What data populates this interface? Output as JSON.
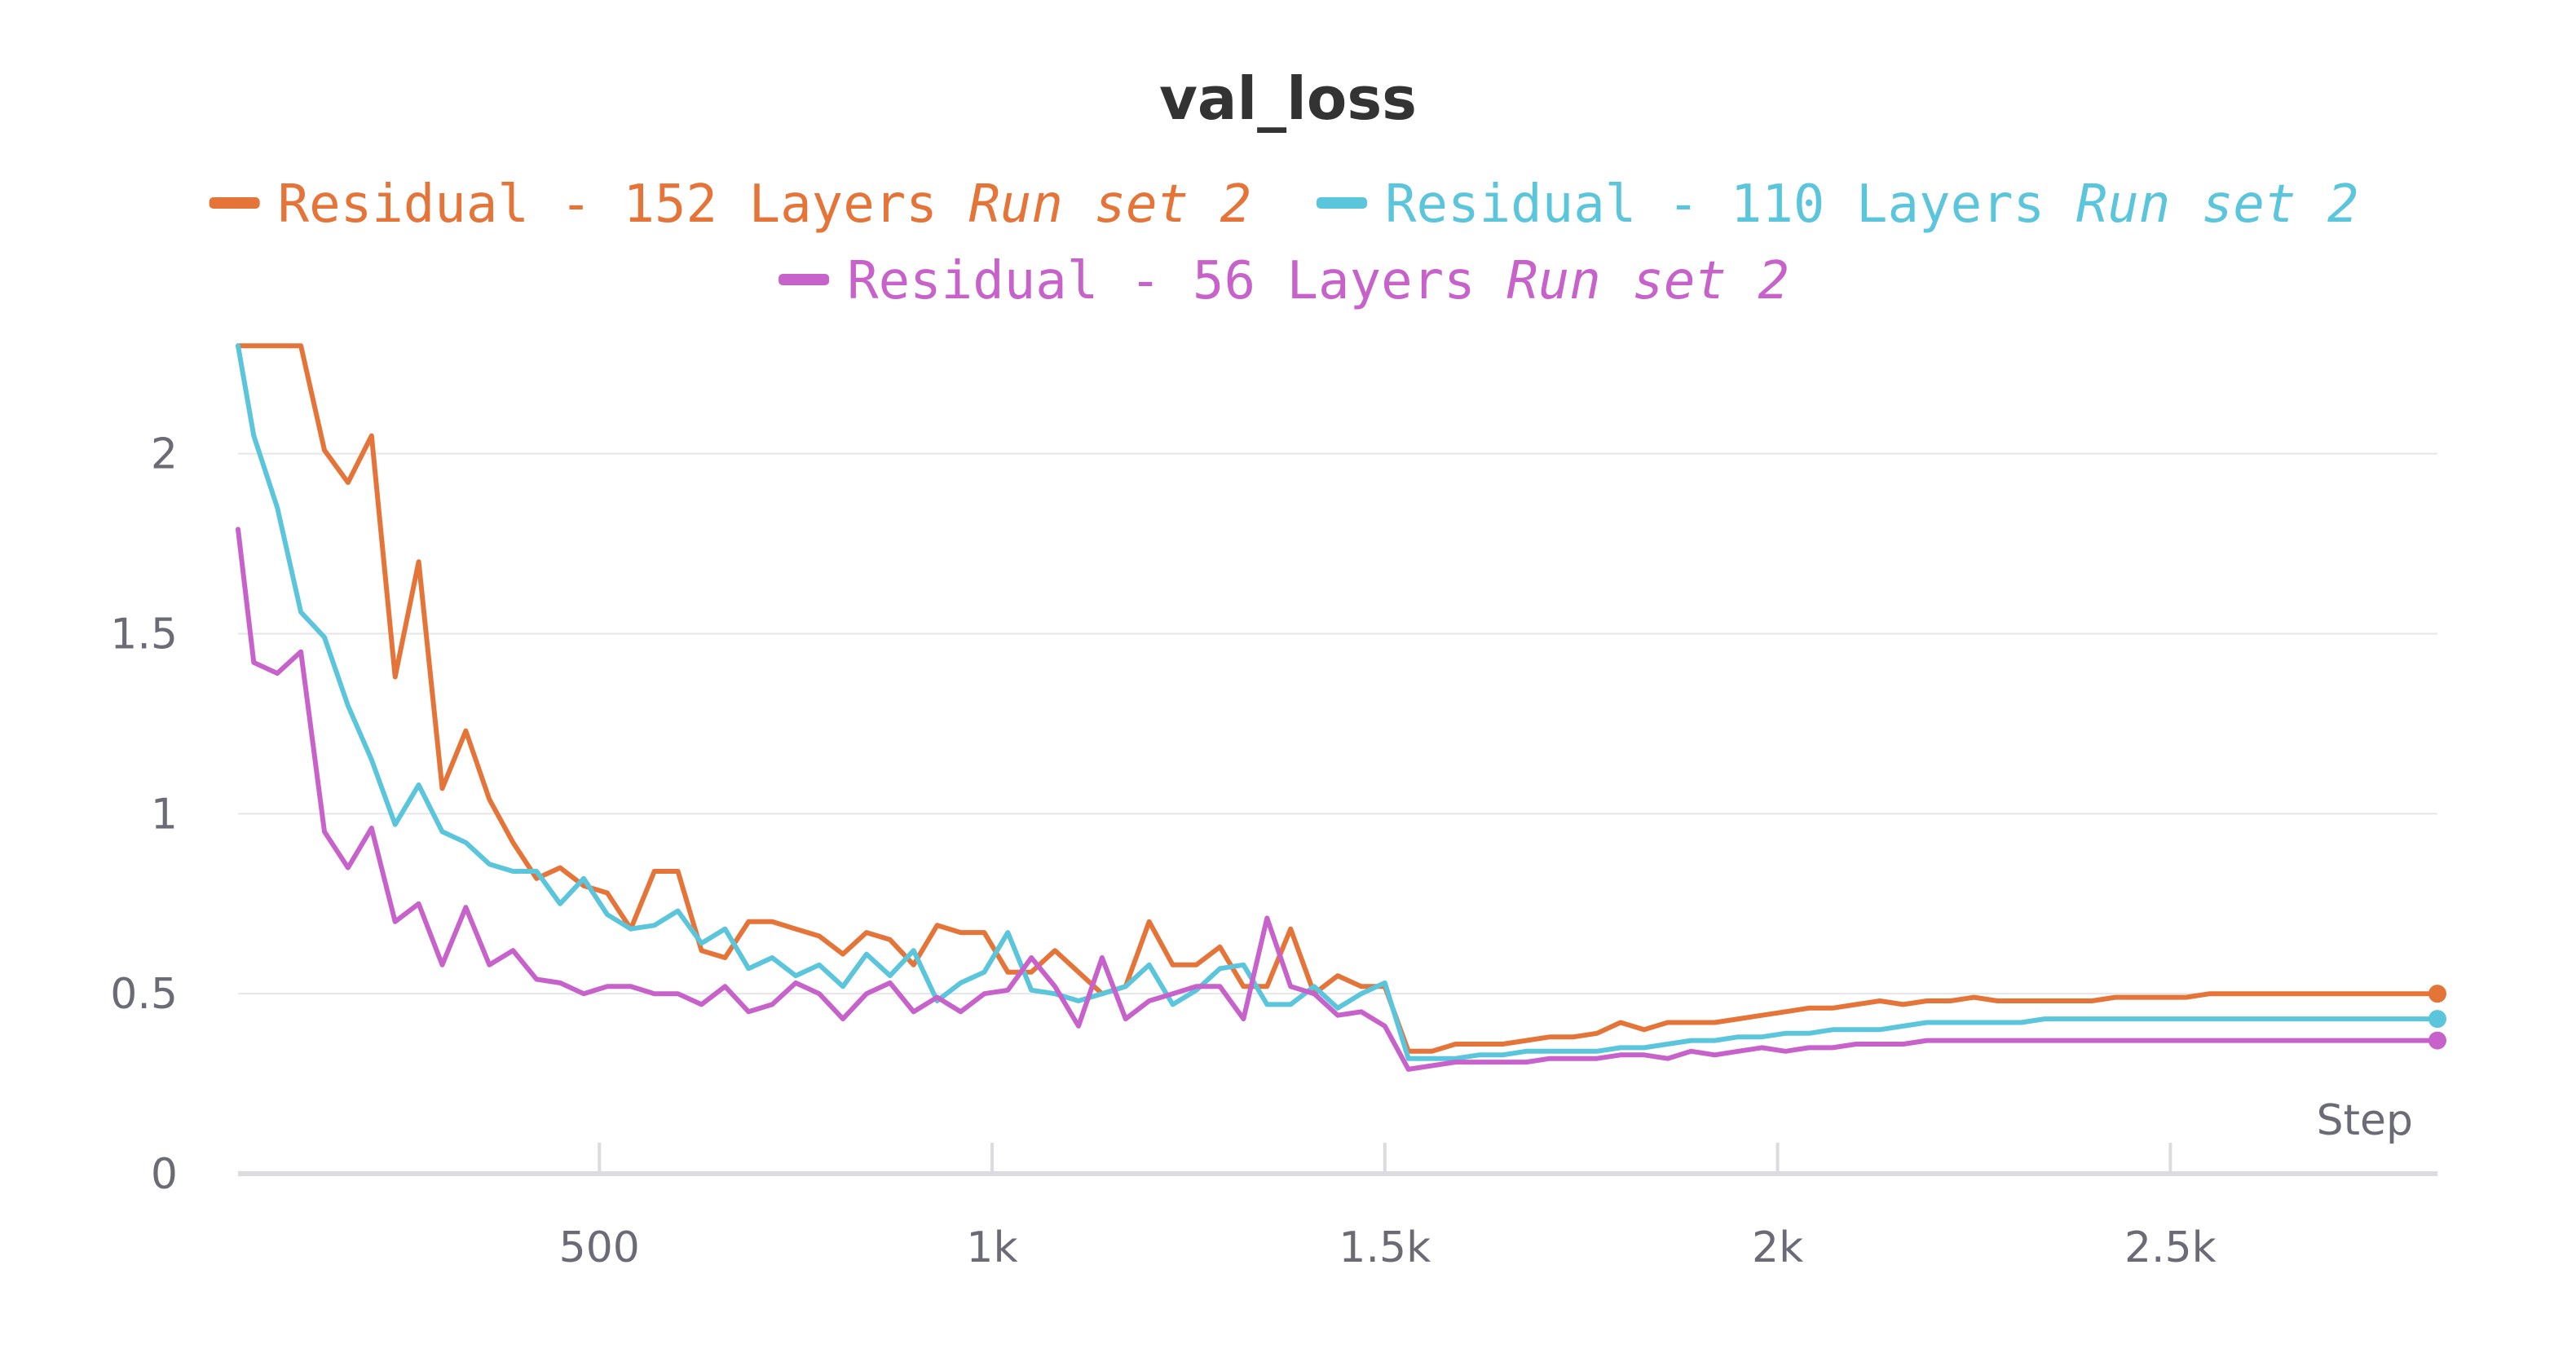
{
  "chart_data": {
    "type": "line",
    "title": "val_loss",
    "xlabel": "Step",
    "ylabel": "",
    "xlim": [
      40,
      2840
    ],
    "ylim": [
      0,
      2.4
    ],
    "grid": true,
    "legend_position": "top-center",
    "x_ticks": [
      {
        "value": 500,
        "label": "500"
      },
      {
        "value": 1000,
        "label": "1k"
      },
      {
        "value": 1500,
        "label": "1.5k"
      },
      {
        "value": 2000,
        "label": "2k"
      },
      {
        "value": 2500,
        "label": "2.5k"
      }
    ],
    "y_ticks": [
      {
        "value": 0,
        "label": "0"
      },
      {
        "value": 0.5,
        "label": "0.5"
      },
      {
        "value": 1,
        "label": "1"
      },
      {
        "value": 1.5,
        "label": "1.5"
      },
      {
        "value": 2,
        "label": "2"
      }
    ],
    "x": [
      30,
      60,
      90,
      120,
      150,
      180,
      210,
      240,
      270,
      300,
      330,
      360,
      390,
      420,
      450,
      480,
      510,
      540,
      570,
      600,
      630,
      660,
      690,
      720,
      750,
      780,
      810,
      840,
      870,
      900,
      930,
      960,
      990,
      1020,
      1050,
      1080,
      1110,
      1140,
      1170,
      1200,
      1230,
      1260,
      1290,
      1320,
      1350,
      1380,
      1410,
      1440,
      1470,
      1500,
      1530,
      1560,
      1590,
      1620,
      1650,
      1680,
      1710,
      1740,
      1770,
      1800,
      1830,
      1860,
      1890,
      1920,
      1950,
      1980,
      2010,
      2040,
      2070,
      2100,
      2130,
      2160,
      2190,
      2220,
      2250,
      2280,
      2310,
      2340,
      2370,
      2400,
      2430,
      2460,
      2490,
      2520,
      2550,
      2580,
      2610,
      2640,
      2670,
      2700,
      2730,
      2760,
      2790,
      2820,
      2840
    ],
    "series": [
      {
        "name": "Residual - 152 Layers",
        "run": "Run set 2",
        "color": "#e57439",
        "values": [
          2.3,
          2.3,
          2.3,
          2.3,
          2.01,
          1.92,
          2.05,
          1.38,
          1.7,
          1.07,
          1.23,
          1.04,
          0.92,
          0.82,
          0.85,
          0.8,
          0.78,
          0.68,
          0.84,
          0.84,
          0.62,
          0.6,
          0.7,
          0.7,
          0.68,
          0.66,
          0.61,
          0.67,
          0.65,
          0.58,
          0.69,
          0.67,
          0.67,
          0.56,
          0.56,
          0.62,
          0.56,
          0.5,
          0.52,
          0.7,
          0.58,
          0.58,
          0.63,
          0.52,
          0.52,
          0.68,
          0.5,
          0.55,
          0.52,
          0.52,
          0.34,
          0.34,
          0.36,
          0.36,
          0.36,
          0.37,
          0.38,
          0.38,
          0.39,
          0.42,
          0.4,
          0.42,
          0.42,
          0.42,
          0.43,
          0.44,
          0.45,
          0.46,
          0.46,
          0.47,
          0.48,
          0.47,
          0.48,
          0.48,
          0.49,
          0.48,
          0.48,
          0.48,
          0.48,
          0.48,
          0.49,
          0.49,
          0.49,
          0.49,
          0.5,
          0.5,
          0.5,
          0.5,
          0.5,
          0.5,
          0.5,
          0.5,
          0.5,
          0.5,
          0.5
        ]
      },
      {
        "name": "Residual - 110 Layers",
        "run": "Run set 2",
        "color": "#5bc5db",
        "values": [
          2.3,
          2.05,
          1.85,
          1.56,
          1.49,
          1.3,
          1.15,
          0.97,
          1.08,
          0.95,
          0.92,
          0.86,
          0.84,
          0.84,
          0.75,
          0.82,
          0.72,
          0.68,
          0.69,
          0.73,
          0.64,
          0.68,
          0.57,
          0.6,
          0.55,
          0.58,
          0.52,
          0.61,
          0.55,
          0.62,
          0.48,
          0.53,
          0.56,
          0.67,
          0.51,
          0.5,
          0.48,
          0.5,
          0.52,
          0.58,
          0.47,
          0.51,
          0.57,
          0.58,
          0.47,
          0.47,
          0.52,
          0.46,
          0.5,
          0.53,
          0.32,
          0.32,
          0.32,
          0.33,
          0.33,
          0.34,
          0.34,
          0.34,
          0.34,
          0.35,
          0.35,
          0.36,
          0.37,
          0.37,
          0.38,
          0.38,
          0.39,
          0.39,
          0.4,
          0.4,
          0.4,
          0.41,
          0.42,
          0.42,
          0.42,
          0.42,
          0.42,
          0.43,
          0.43,
          0.43,
          0.43,
          0.43,
          0.43,
          0.43,
          0.43,
          0.43,
          0.43,
          0.43,
          0.43,
          0.43,
          0.43,
          0.43,
          0.43,
          0.43,
          0.43
        ]
      },
      {
        "name": "Residual - 56 Layers",
        "run": "Run set 2",
        "color": "#c662c9",
        "values": [
          1.79,
          1.42,
          1.39,
          1.45,
          0.95,
          0.85,
          0.96,
          0.7,
          0.75,
          0.58,
          0.74,
          0.58,
          0.62,
          0.54,
          0.53,
          0.5,
          0.52,
          0.52,
          0.5,
          0.5,
          0.47,
          0.52,
          0.45,
          0.47,
          0.53,
          0.5,
          0.43,
          0.5,
          0.53,
          0.45,
          0.49,
          0.45,
          0.5,
          0.51,
          0.6,
          0.52,
          0.41,
          0.6,
          0.43,
          0.48,
          0.5,
          0.52,
          0.52,
          0.43,
          0.71,
          0.52,
          0.5,
          0.44,
          0.45,
          0.41,
          0.29,
          0.3,
          0.31,
          0.31,
          0.31,
          0.31,
          0.32,
          0.32,
          0.32,
          0.33,
          0.33,
          0.32,
          0.34,
          0.33,
          0.34,
          0.35,
          0.34,
          0.35,
          0.35,
          0.36,
          0.36,
          0.36,
          0.37,
          0.37,
          0.37,
          0.37,
          0.37,
          0.37,
          0.37,
          0.37,
          0.37,
          0.37,
          0.37,
          0.37,
          0.37,
          0.37,
          0.37,
          0.37,
          0.37,
          0.37,
          0.37,
          0.37,
          0.37,
          0.37,
          0.37
        ]
      }
    ]
  }
}
